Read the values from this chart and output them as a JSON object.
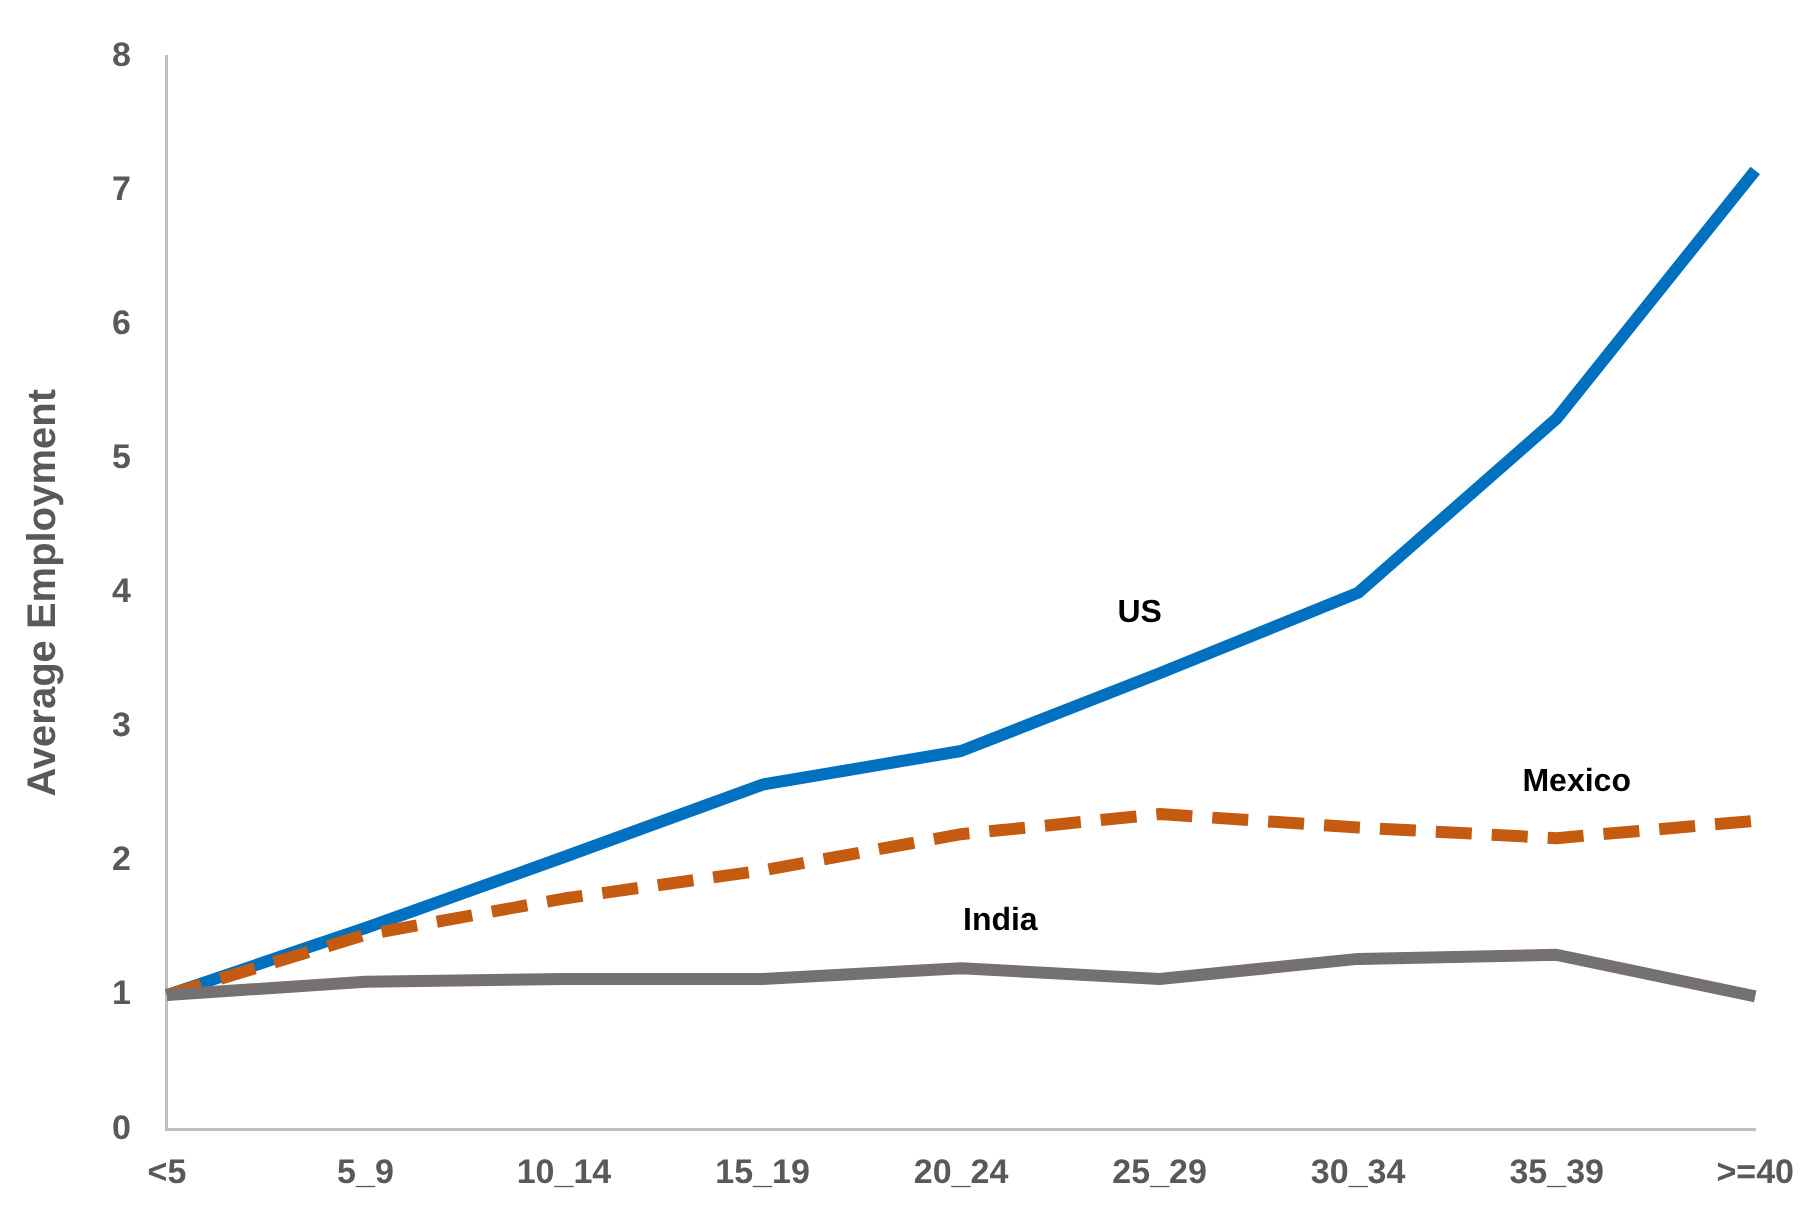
{
  "chart_data": {
    "type": "line",
    "ylabel": "Average Employment",
    "categories": [
      "<5",
      "5_9",
      "10_14",
      "15_19",
      "20_24",
      "25_29",
      "30_34",
      "35_39",
      ">=40"
    ],
    "series": [
      {
        "name": "US",
        "color": "#0070c0",
        "line_style": "solid",
        "values": [
          1,
          1.5,
          2.03,
          2.57,
          2.82,
          3.4,
          4.0,
          5.3,
          7.15
        ]
      },
      {
        "name": "Mexico",
        "color": "#c55a11",
        "line_style": "dashed",
        "values": [
          1,
          1.45,
          1.72,
          1.93,
          2.2,
          2.35,
          2.25,
          2.17,
          2.3
        ]
      },
      {
        "name": "India",
        "color": "#767171",
        "line_style": "solid",
        "values": [
          1,
          1.1,
          1.12,
          1.12,
          1.2,
          1.12,
          1.27,
          1.3,
          0.99
        ]
      }
    ],
    "ylim": [
      0,
      8
    ],
    "yticks": [
      0,
      1,
      2,
      3,
      4,
      5,
      6,
      7,
      8
    ],
    "grid": false,
    "legend": false,
    "marker": "none"
  }
}
